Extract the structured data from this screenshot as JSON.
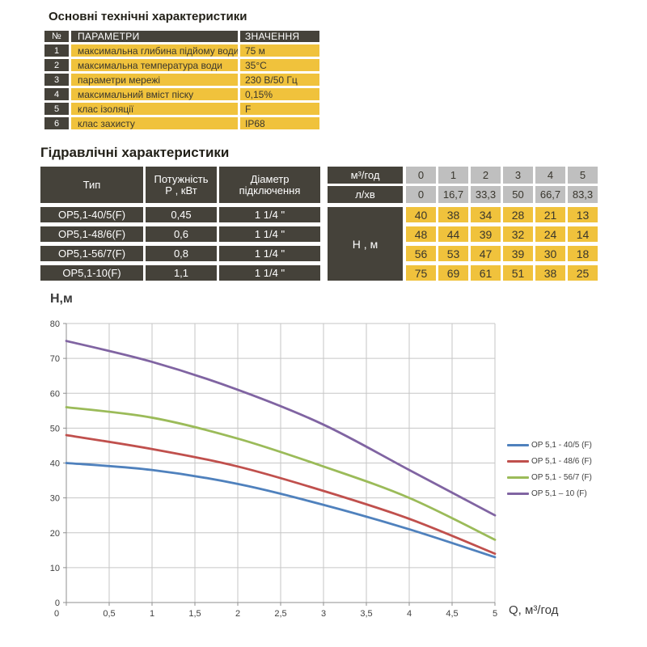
{
  "appearance": {
    "dark_cell": "#45423a",
    "yellow_cell": "#f0c23c",
    "gray_cell": "#bfbfbf",
    "grid_color": "#c6c6c6",
    "axis_color": "#8f8f8f"
  },
  "tech": {
    "title": "Основні технічні характеристики",
    "header": {
      "num": "№",
      "param": "ПАРАМЕТРИ",
      "value": "ЗНАЧЕННЯ"
    },
    "rows": [
      {
        "num": "1",
        "param": "максимальна глибина підйому води",
        "value": "75 м"
      },
      {
        "num": "2",
        "param": "максимальна температура води",
        "value": "35°C"
      },
      {
        "num": "3",
        "param": "параметри мережі",
        "value": "230 В/50 Гц"
      },
      {
        "num": "4",
        "param": "максимальний вміст піску",
        "value": "0,15%"
      },
      {
        "num": "5",
        "param": "клас ізоляції",
        "value": "F"
      },
      {
        "num": "6",
        "param": "клас захисту",
        "value": "IP68"
      }
    ]
  },
  "hydraulic": {
    "title": "Гідравлічні характеристики",
    "header": {
      "type": "Тип",
      "power_line1": "Потужність",
      "power_line2": "Р , кВт",
      "diameter_line1": "Діаметр",
      "diameter_line2": "підключення",
      "flow_m3": "м³/год",
      "flow_lmin": "л/хв",
      "m3_values": [
        "0",
        "1",
        "2",
        "3",
        "4",
        "5"
      ],
      "lmin_values": [
        "0",
        "16,7",
        "33,3",
        "50",
        "66,7",
        "83,3"
      ],
      "h_label": "Н , м"
    },
    "rows": [
      {
        "type": "ОР5,1-40/5(F)",
        "power": "0,45",
        "diameter": "1 1/4 \"",
        "h": [
          "40",
          "38",
          "34",
          "28",
          "21",
          "13"
        ]
      },
      {
        "type": "ОР5,1-48/6(F)",
        "power": "0,6",
        "diameter": "1 1/4 \"",
        "h": [
          "48",
          "44",
          "39",
          "32",
          "24",
          "14"
        ]
      },
      {
        "type": "ОР5,1-56/7(F)",
        "power": "0,8",
        "diameter": "1 1/4 \"",
        "h": [
          "56",
          "53",
          "47",
          "39",
          "30",
          "18"
        ]
      },
      {
        "type": "ОР5,1-10(F)",
        "power": "1,1",
        "diameter": "1 1/4 \"",
        "h": [
          "75",
          "69",
          "61",
          "51",
          "38",
          "25"
        ]
      }
    ]
  },
  "chart_data": {
    "type": "line",
    "title": "",
    "ylabel": "Н,м",
    "xlabel": "Q,  м³/год",
    "x": [
      0,
      1,
      2,
      3,
      4,
      5
    ],
    "series": [
      {
        "name": "OP 5,1 - 40/5 (F)",
        "color": "#4F81BD",
        "values": [
          40,
          38,
          34,
          28,
          21,
          13
        ]
      },
      {
        "name": "OP 5,1 - 48/6 (F)",
        "color": "#C0504D",
        "values": [
          48,
          44,
          39,
          32,
          24,
          14
        ]
      },
      {
        "name": "OP 5,1 - 56/7 (F)",
        "color": "#9BBB59",
        "values": [
          56,
          53,
          47,
          39,
          30,
          18
        ]
      },
      {
        "name": "OP 5,1 – 10 (F)",
        "color": "#8064A2",
        "values": [
          75,
          69,
          61,
          51,
          38,
          25
        ]
      }
    ],
    "xlim": [
      0,
      5
    ],
    "ylim": [
      0,
      80
    ],
    "x_ticks": [
      "0",
      "0,5",
      "1",
      "1,5",
      "2",
      "2,5",
      "3",
      "3,5",
      "4",
      "4,5",
      "5"
    ],
    "y_ticks": [
      "0",
      "10",
      "20",
      "30",
      "40",
      "50",
      "60",
      "70",
      "80"
    ],
    "grid": true,
    "legend_position": "right"
  }
}
